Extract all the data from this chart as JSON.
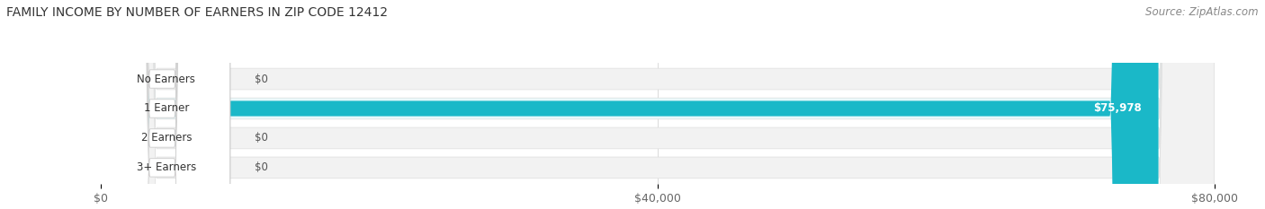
{
  "title": "FAMILY INCOME BY NUMBER OF EARNERS IN ZIP CODE 12412",
  "source": "Source: ZipAtlas.com",
  "categories": [
    "No Earners",
    "1 Earner",
    "2 Earners",
    "3+ Earners"
  ],
  "values": [
    0,
    75978,
    0,
    0
  ],
  "bar_colors": [
    "#c9a0cc",
    "#1ab8c8",
    "#9898d8",
    "#f49ab0"
  ],
  "xlim": [
    0,
    80000
  ],
  "xticks": [
    0,
    40000,
    80000
  ],
  "xtick_labels": [
    "$0",
    "$40,000",
    "$80,000"
  ],
  "value_label": "$75,978",
  "title_fontsize": 10,
  "source_fontsize": 8.5,
  "tick_fontsize": 9,
  "bar_label_fontsize": 8.5,
  "category_fontsize": 8.5,
  "fig_width": 14.06,
  "fig_height": 2.33,
  "background_color": "#ffffff"
}
